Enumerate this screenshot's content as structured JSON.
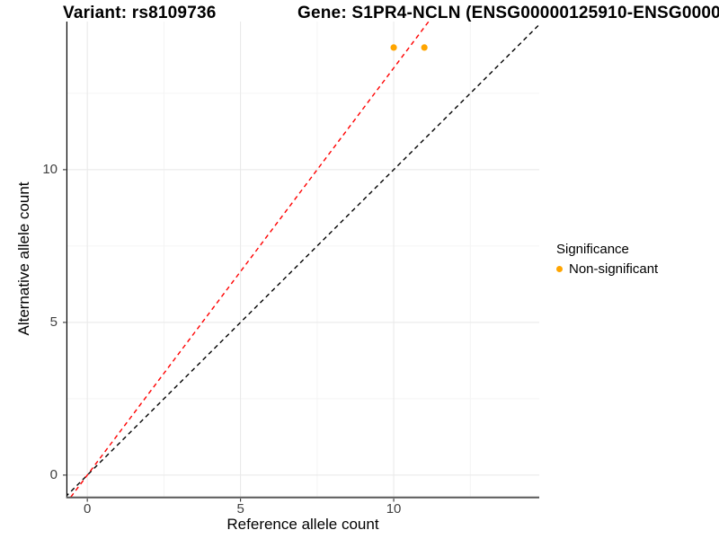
{
  "chart_data": {
    "type": "scatter",
    "title_left": "Variant: rs8109736",
    "title_right": "Gene: S1PR4-NCLN (ENSG00000125910-ENSG0000",
    "xlabel": "Reference allele count",
    "ylabel": "Alternative allele count",
    "xlim": [
      -0.65,
      14.75
    ],
    "ylim": [
      -0.71,
      14.85
    ],
    "x_ticks": [
      0,
      5,
      10
    ],
    "y_ticks": [
      0,
      5,
      10
    ],
    "x_minor_ticks": [
      2.5,
      7.5,
      12.5
    ],
    "y_minor_ticks": [
      2.5,
      7.5,
      12.5
    ],
    "grid": true,
    "legend_position": "right",
    "series": [
      {
        "name": "Non-significant",
        "color": "#FFA500",
        "points": [
          [
            10,
            14
          ],
          [
            11,
            14
          ]
        ]
      }
    ],
    "lines": [
      {
        "name": "identity",
        "slope": 1,
        "intercept": 0,
        "color": "#000000",
        "style": "dashed"
      },
      {
        "name": "expected-ratio",
        "slope": 1.333,
        "intercept": 0,
        "color": "#FF0000",
        "style": "dashed"
      }
    ],
    "legend": {
      "title": "Significance",
      "items": [
        {
          "label": "Non-significant",
          "color": "#FFA500"
        }
      ]
    }
  },
  "colors": {
    "grid_major": "#E8E8E8",
    "grid_minor": "#F4F4F4",
    "axis_line_y": "#000000",
    "axis_line_x": "#595959",
    "tick_mark": "#333333",
    "axis_text": "#404040"
  }
}
